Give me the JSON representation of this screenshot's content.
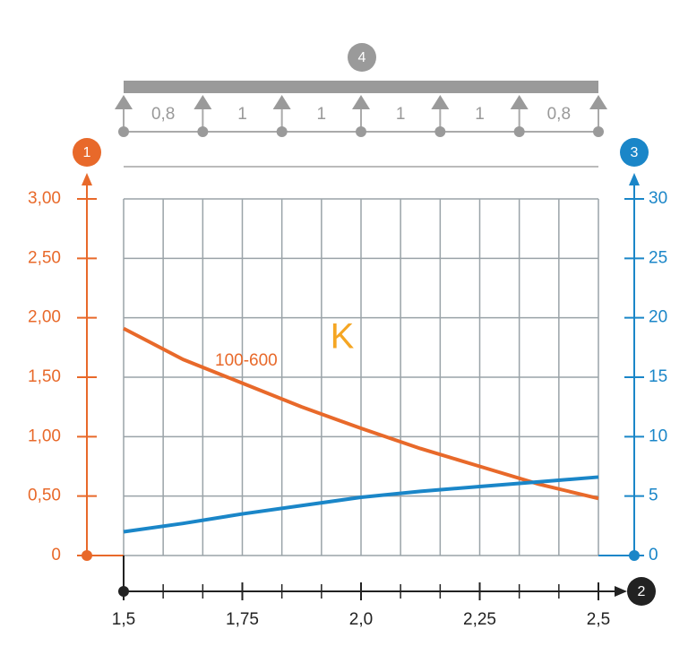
{
  "chart_data": {
    "type": "line",
    "x": [
      1.5,
      1.625,
      1.75,
      1.875,
      2.0,
      2.125,
      2.25,
      2.375,
      2.5
    ],
    "series": [
      {
        "name": "100-600",
        "color": "#e8692a",
        "values": [
          1.91,
          1.65,
          1.45,
          1.25,
          1.07,
          0.9,
          0.75,
          0.6,
          0.48
        ]
      },
      {
        "color": "#1a86c8",
        "axis": "y2",
        "values": [
          2.0,
          2.7,
          3.5,
          4.2,
          4.9,
          5.4,
          5.8,
          6.2,
          6.6
        ]
      }
    ],
    "xlim": [
      1.5,
      2.5
    ],
    "xticks": [
      {
        "value": 1.5,
        "label": "1,5"
      },
      {
        "value": 1.75,
        "label": "1,75"
      },
      {
        "value": 2.0,
        "label": "2,0"
      },
      {
        "value": 2.25,
        "label": "2,25"
      },
      {
        "value": 2.5,
        "label": "2,5"
      }
    ],
    "xgrid": [
      1.5,
      1.5833,
      1.6667,
      1.75,
      1.8333,
      1.9167,
      2.0,
      2.0833,
      2.1667,
      2.25,
      2.3333,
      2.4167,
      2.5
    ],
    "ylim": [
      0,
      3
    ],
    "yticks": [
      0,
      {
        "value": 0.5,
        "label": "0,50"
      },
      {
        "value": 1.0,
        "label": "1,00"
      },
      {
        "value": 1.5,
        "label": "1,50"
      },
      {
        "value": 2.0,
        "label": "2,00"
      },
      {
        "value": 2.5,
        "label": "2,50"
      },
      {
        "value": 3.0,
        "label": "3,00"
      }
    ],
    "y2lim": [
      0,
      30
    ],
    "y2ticks": [
      0,
      5,
      10,
      15,
      20,
      25,
      30
    ],
    "grid": true,
    "annotations": {
      "letter": "K",
      "y_badge": "1",
      "x_badge": "2",
      "y2_badge": "3",
      "beam_badge": "4",
      "spans": [
        "0,8",
        "1",
        "1",
        "1",
        "1",
        "0,8"
      ]
    }
  }
}
